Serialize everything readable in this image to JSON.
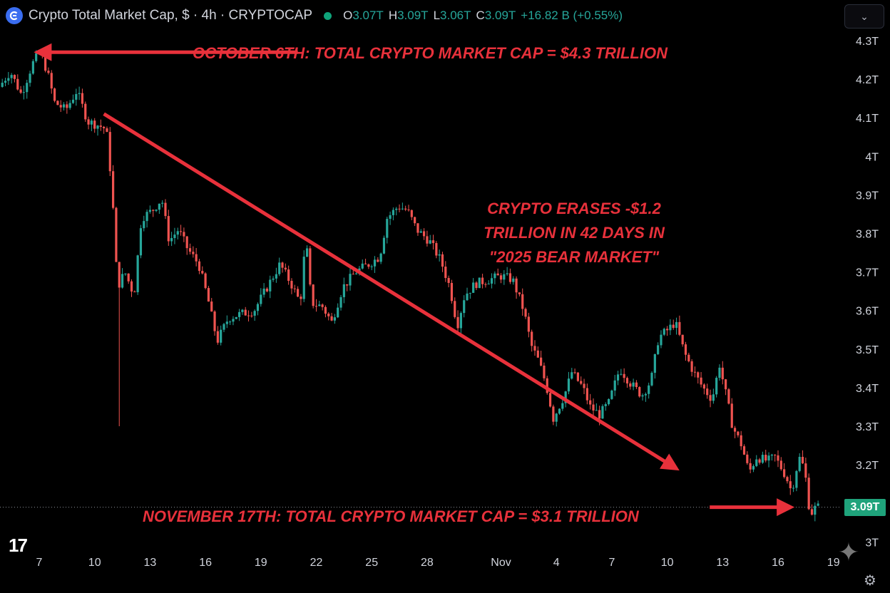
{
  "header": {
    "title": "Crypto Total Market Cap, $ · 4h · CRYPTOCAP",
    "ohlc": [
      {
        "key": "O",
        "value": "3.07T"
      },
      {
        "key": "H",
        "value": "3.09T"
      },
      {
        "key": "L",
        "value": "3.06T"
      },
      {
        "key": "C",
        "value": "3.09T"
      }
    ],
    "change": "+16.82 B (+0.55%)"
  },
  "controls": {
    "collapse_glyph": "⌄"
  },
  "current_price_tag": "3.09T",
  "annotations": {
    "top": "OCTOBER 6TH: TOTAL CRYPTO MARKET CAP = $4.3 TRILLION",
    "middle_lines": [
      "CRYPTO ERASES -$1.2",
      "TRILLION IN 42 DAYS IN",
      "\"2025 BEAR MARKET\""
    ],
    "bottom": "NOVEMBER 17TH: TOTAL CRYPTO MARKET CAP = $3.1 TRILLION"
  },
  "branding": {
    "logo_text": "17"
  },
  "colors": {
    "up": "#26a69a",
    "down": "#ef5350",
    "annotation": "#e8313b",
    "price_tag": "#1fa37b",
    "background": "#000000"
  },
  "chart_data": {
    "type": "candlestick",
    "title": "Crypto Total Market Cap",
    "interval": "4h",
    "yunit": "T",
    "ylim": [
      2.95,
      4.4
    ],
    "y_ticks": [
      "4.3T",
      "4.2T",
      "4.1T",
      "4T",
      "3.9T",
      "3.8T",
      "3.7T",
      "3.6T",
      "3.5T",
      "3.4T",
      "3.3T",
      "3.2T",
      "3T"
    ],
    "y_tick_values": [
      4.3,
      4.2,
      4.1,
      4.0,
      3.9,
      3.8,
      3.7,
      3.6,
      3.5,
      3.4,
      3.3,
      3.2,
      3.0
    ],
    "x_ticks": [
      "7",
      "10",
      "13",
      "16",
      "19",
      "22",
      "25",
      "28",
      "Nov",
      "4",
      "7",
      "10",
      "13",
      "16",
      "19"
    ],
    "x_tick_days": [
      7,
      10,
      13,
      16,
      19,
      22,
      25,
      28,
      32,
      35,
      38,
      41,
      44,
      47,
      50
    ],
    "x_day_unit": "days from Oct 1",
    "xlim_days": [
      5,
      51
    ],
    "price_path": [
      {
        "day": 5.0,
        "value": 4.18
      },
      {
        "day": 5.6,
        "value": 4.22
      },
      {
        "day": 6.2,
        "value": 4.16
      },
      {
        "day": 6.8,
        "value": 4.24
      },
      {
        "day": 7.2,
        "value": 4.27
      },
      {
        "day": 7.6,
        "value": 4.22
      },
      {
        "day": 8.0,
        "value": 4.14
      },
      {
        "day": 8.6,
        "value": 4.12
      },
      {
        "day": 9.2,
        "value": 4.17
      },
      {
        "day": 9.8,
        "value": 4.09
      },
      {
        "day": 10.4,
        "value": 4.08
      },
      {
        "day": 10.8,
        "value": 4.07
      },
      {
        "day": 11.1,
        "value": 3.92
      },
      {
        "day": 11.4,
        "value": 3.66
      },
      {
        "day": 11.8,
        "value": 3.7
      },
      {
        "day": 12.3,
        "value": 3.64
      },
      {
        "day": 12.7,
        "value": 3.84
      },
      {
        "day": 13.3,
        "value": 3.86
      },
      {
        "day": 13.8,
        "value": 3.89
      },
      {
        "day": 14.2,
        "value": 3.78
      },
      {
        "day": 14.7,
        "value": 3.81
      },
      {
        "day": 15.2,
        "value": 3.76
      },
      {
        "day": 15.8,
        "value": 3.72
      },
      {
        "day": 16.3,
        "value": 3.63
      },
      {
        "day": 16.8,
        "value": 3.52
      },
      {
        "day": 17.4,
        "value": 3.58
      },
      {
        "day": 18.0,
        "value": 3.59
      },
      {
        "day": 18.8,
        "value": 3.6
      },
      {
        "day": 19.5,
        "value": 3.66
      },
      {
        "day": 20.2,
        "value": 3.72
      },
      {
        "day": 20.8,
        "value": 3.67
      },
      {
        "day": 21.3,
        "value": 3.62
      },
      {
        "day": 21.6,
        "value": 3.79
      },
      {
        "day": 21.9,
        "value": 3.62
      },
      {
        "day": 22.5,
        "value": 3.61
      },
      {
        "day": 23.0,
        "value": 3.57
      },
      {
        "day": 23.6,
        "value": 3.66
      },
      {
        "day": 24.3,
        "value": 3.7
      },
      {
        "day": 25.0,
        "value": 3.72
      },
      {
        "day": 25.6,
        "value": 3.74
      },
      {
        "day": 26.0,
        "value": 3.84
      },
      {
        "day": 26.6,
        "value": 3.87
      },
      {
        "day": 27.1,
        "value": 3.86
      },
      {
        "day": 27.6,
        "value": 3.81
      },
      {
        "day": 28.3,
        "value": 3.78
      },
      {
        "day": 28.9,
        "value": 3.73
      },
      {
        "day": 29.4,
        "value": 3.66
      },
      {
        "day": 29.8,
        "value": 3.56
      },
      {
        "day": 30.2,
        "value": 3.64
      },
      {
        "day": 30.8,
        "value": 3.67
      },
      {
        "day": 31.5,
        "value": 3.68
      },
      {
        "day": 32.2,
        "value": 3.69
      },
      {
        "day": 32.8,
        "value": 3.68
      },
      {
        "day": 33.4,
        "value": 3.6
      },
      {
        "day": 33.8,
        "value": 3.51
      },
      {
        "day": 34.2,
        "value": 3.47
      },
      {
        "day": 34.6,
        "value": 3.41
      },
      {
        "day": 35.0,
        "value": 3.32
      },
      {
        "day": 35.6,
        "value": 3.38
      },
      {
        "day": 36.0,
        "value": 3.44
      },
      {
        "day": 36.6,
        "value": 3.4
      },
      {
        "day": 37.0,
        "value": 3.35
      },
      {
        "day": 37.5,
        "value": 3.33
      },
      {
        "day": 38.0,
        "value": 3.36
      },
      {
        "day": 38.6,
        "value": 3.45
      },
      {
        "day": 39.2,
        "value": 3.41
      },
      {
        "day": 39.8,
        "value": 3.38
      },
      {
        "day": 40.3,
        "value": 3.42
      },
      {
        "day": 40.7,
        "value": 3.53
      },
      {
        "day": 41.2,
        "value": 3.55
      },
      {
        "day": 41.6,
        "value": 3.57
      },
      {
        "day": 42.1,
        "value": 3.49
      },
      {
        "day": 42.6,
        "value": 3.44
      },
      {
        "day": 43.1,
        "value": 3.4
      },
      {
        "day": 43.6,
        "value": 3.37
      },
      {
        "day": 44.0,
        "value": 3.46
      },
      {
        "day": 44.4,
        "value": 3.37
      },
      {
        "day": 44.7,
        "value": 3.3
      },
      {
        "day": 45.2,
        "value": 3.25
      },
      {
        "day": 45.6,
        "value": 3.18
      },
      {
        "day": 46.0,
        "value": 3.22
      },
      {
        "day": 46.6,
        "value": 3.21
      },
      {
        "day": 47.0,
        "value": 3.22
      },
      {
        "day": 47.6,
        "value": 3.17
      },
      {
        "day": 47.9,
        "value": 3.13
      },
      {
        "day": 48.3,
        "value": 3.22
      },
      {
        "day": 48.6,
        "value": 3.19
      },
      {
        "day": 48.9,
        "value": 3.07
      },
      {
        "day": 49.2,
        "value": 3.09
      }
    ],
    "last_price": 3.09,
    "trend_arrow": {
      "from": {
        "day": 10.5,
        "value": 4.11
      },
      "to": {
        "day": 41.5,
        "value": 3.19
      }
    },
    "annotation_arrows": [
      {
        "from": {
          "day": 21.0,
          "value": 4.27
        },
        "to": {
          "day": 6.9,
          "value": 4.27
        }
      },
      {
        "from": {
          "day": 43.3,
          "value": 3.09
        },
        "to": {
          "day": 47.7,
          "value": 3.09
        }
      }
    ]
  }
}
